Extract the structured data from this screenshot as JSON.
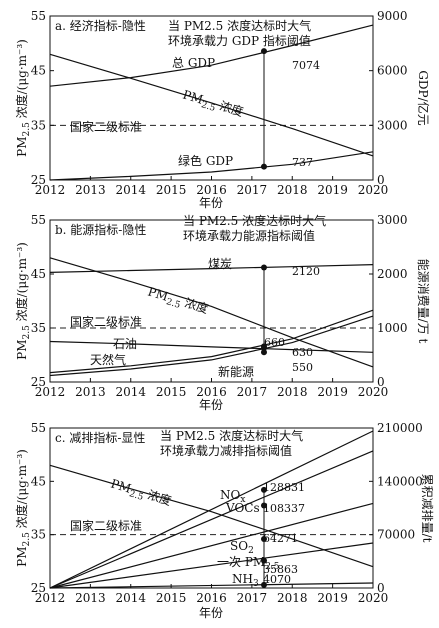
{
  "chart_data": [
    {
      "type": "line",
      "title": "a. 经济指标-隐性",
      "annotation": [
        "当 PM2.5 浓度达标时大气",
        "环境承载力 GDP 指标阈值"
      ],
      "xlabel": "年份",
      "ylabel": "PM2.5 浓度/(μg·m⁻³)",
      "ylabel_right": "GDP/亿元",
      "xlim": [
        2012,
        2020
      ],
      "ylim": [
        25,
        55
      ],
      "ylim_right": [
        0,
        9000
      ],
      "xticks": [
        "2012",
        "2013",
        "2014",
        "2015",
        "2016",
        "2017",
        "2018",
        "2019",
        "2020"
      ],
      "yticks": [
        "25",
        "35",
        "45",
        "55"
      ],
      "yticks_right": [
        "0",
        "3000",
        "6000",
        "9000"
      ],
      "standard": {
        "label": "国家二级标准",
        "y": 35
      },
      "threshold_year": 2017.3,
      "series": [
        {
          "name": "PM2.5 浓度",
          "axis": "left",
          "x": [
            2012,
            2014,
            2016,
            2018,
            2020
          ],
          "y": [
            48,
            43.6,
            39.1,
            34.4,
            29.4
          ]
        },
        {
          "name": "总 GDP",
          "axis": "right",
          "x": [
            2012,
            2014,
            2016,
            2018,
            2020
          ],
          "y": [
            5150,
            5620,
            6300,
            7380,
            8500
          ]
        },
        {
          "name": "绿色 GDP",
          "axis": "right",
          "x": [
            2012,
            2014,
            2016,
            2018,
            2020
          ],
          "y": [
            0,
            200,
            440,
            860,
            1550
          ]
        }
      ],
      "markers": [
        {
          "series": "总 GDP",
          "x": 2017.3,
          "y": 7074,
          "label": "7074"
        },
        {
          "series": "绿色 GDP",
          "x": 2017.3,
          "y": 737,
          "label": "737"
        }
      ]
    },
    {
      "type": "line",
      "title": "b. 能源指标-隐性",
      "annotation": [
        "当 PM2.5 浓度达标时大气",
        "环境承载力能源指标阈值"
      ],
      "xlabel": "年份",
      "ylabel": "PM2.5 浓度/(μg·m⁻³)",
      "ylabel_right": "能源消费量/万 t",
      "xlim": [
        2012,
        2020
      ],
      "ylim": [
        25,
        55
      ],
      "ylim_right": [
        0,
        3000
      ],
      "xticks": [
        "2012",
        "2013",
        "2014",
        "2015",
        "2016",
        "2017",
        "2018",
        "2019",
        "2020"
      ],
      "yticks": [
        "25",
        "35",
        "45",
        "55"
      ],
      "yticks_right": [
        "0",
        "1000",
        "2000",
        "3000"
      ],
      "standard": {
        "label": "国家二级标准",
        "y": 35
      },
      "threshold_year": 2017.3,
      "series": [
        {
          "name": "煤炭",
          "axis": "right",
          "x": [
            2012,
            2014,
            2016,
            2018,
            2020
          ],
          "y": [
            2030,
            2065,
            2100,
            2135,
            2175
          ]
        },
        {
          "name": "PM2.5 浓度",
          "axis": "left",
          "x": [
            2012,
            2014,
            2016,
            2018,
            2020
          ],
          "y": [
            48,
            43.6,
            39,
            33.2,
            27.8
          ]
        },
        {
          "name": "石油",
          "axis": "right",
          "x": [
            2012,
            2014,
            2016,
            2018,
            2020
          ],
          "y": [
            175,
            300,
            470,
            800,
            1330
          ]
        },
        {
          "name": "天然气",
          "axis": "right",
          "x": [
            2012,
            2014,
            2016,
            2018,
            2020
          ],
          "y": [
            750,
            705,
            650,
            600,
            550
          ]
        },
        {
          "name": "新能源",
          "axis": "right",
          "x": [
            2012,
            2014,
            2016,
            2018,
            2020
          ],
          "y": [
            120,
            240,
            410,
            730,
            1220
          ]
        }
      ],
      "markers": [
        {
          "series": "煤炭",
          "x": 2017.3,
          "y": 2120,
          "label": "2120"
        },
        {
          "series": "石油",
          "x": 2017.3,
          "y": 660,
          "label": "660"
        },
        {
          "series": "天然气",
          "x": 2017.3,
          "y": 630,
          "label": "630"
        },
        {
          "series": "新能源",
          "x": 2017.3,
          "y": 550,
          "label": "550"
        }
      ]
    },
    {
      "type": "line",
      "title": "c. 减排指标-显性",
      "annotation": [
        "当 PM2.5 浓度达标时大气",
        "环境承载力减排指标阈值"
      ],
      "xlabel": "年份",
      "ylabel": "PM2.5 浓度/(μg·m⁻³)",
      "ylabel_right": "累积减排量/t",
      "xlim": [
        2012,
        2020
      ],
      "ylim": [
        25,
        55
      ],
      "ylim_right": [
        0,
        210000
      ],
      "xticks": [
        "2012",
        "2013",
        "2014",
        "2015",
        "2016",
        "2017",
        "2018",
        "2019",
        "2020"
      ],
      "yticks": [
        "25",
        "35",
        "45",
        "55"
      ],
      "yticks_right": [
        "0",
        "70000",
        "140000",
        "210000"
      ],
      "standard": {
        "label": "国家二级标准",
        "y": 35
      },
      "threshold_year": 2017.3,
      "series": [
        {
          "name": "PM2.5 浓度",
          "axis": "left",
          "x": [
            2012,
            2014,
            2016,
            2018,
            2020
          ],
          "y": [
            48,
            43.6,
            39.3,
            34.2,
            29
          ]
        },
        {
          "name": "NOx",
          "axis": "right",
          "x": [
            2012,
            2020
          ],
          "y": [
            0,
            206000
          ]
        },
        {
          "name": "VOCs",
          "axis": "right",
          "x": [
            2012,
            2020
          ],
          "y": [
            0,
            180000
          ]
        },
        {
          "name": "SO2",
          "axis": "right",
          "x": [
            2012,
            2020
          ],
          "y": [
            0,
            111000
          ]
        },
        {
          "name": "一次 PM2.5",
          "axis": "right",
          "x": [
            2012,
            2020
          ],
          "y": [
            0,
            59000
          ]
        },
        {
          "name": "NH3",
          "axis": "right",
          "x": [
            2012,
            2020
          ],
          "y": [
            0,
            6500
          ]
        }
      ],
      "markers": [
        {
          "series": "NOx",
          "x": 2017.3,
          "y": 128831,
          "label": "128831"
        },
        {
          "series": "VOCs",
          "x": 2017.3,
          "y": 108337,
          "label": "108337"
        },
        {
          "series": "SO2",
          "x": 2017.3,
          "y": 64271,
          "label": "64271"
        },
        {
          "series": "一次 PM2.5",
          "x": 2017.3,
          "y": 35863,
          "label": "35863"
        },
        {
          "series": "NH3",
          "x": 2017.3,
          "y": 4070,
          "label": "4070"
        }
      ]
    }
  ]
}
